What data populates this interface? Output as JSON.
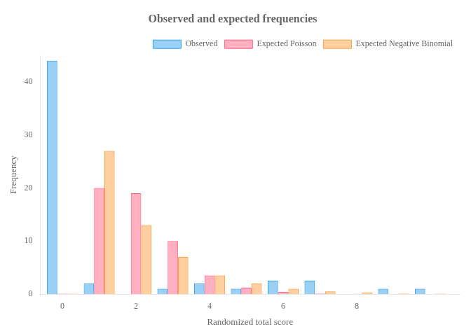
{
  "chart_data": {
    "type": "bar",
    "title": "Observed and expected frequencies",
    "xlabel": "Randomized total score",
    "ylabel": "Frequency",
    "x": [
      0,
      1,
      2,
      3,
      4,
      5,
      6,
      7,
      8,
      9,
      10
    ],
    "series": [
      {
        "name": "Observed",
        "values": [
          44,
          2,
          0,
          1,
          2,
          1,
          2.5,
          2.5,
          0,
          1,
          1
        ]
      },
      {
        "name": "Expected Poisson",
        "values": [
          0.05,
          20,
          19,
          10,
          3.5,
          1.2,
          0.4,
          0.1,
          0.03,
          0.01,
          0.0
        ]
      },
      {
        "name": "Expected Negative Binomial",
        "values": [
          0.05,
          27,
          13,
          7,
          3.5,
          2,
          1,
          0.5,
          0.3,
          0.1,
          0.05
        ]
      }
    ],
    "xlim": [
      -0.6,
      10.8
    ],
    "xticks": [
      0,
      2,
      4,
      6,
      8
    ],
    "ylim": [
      0,
      45
    ],
    "yticks": [
      0,
      10,
      20,
      30,
      40
    ],
    "grid": false,
    "legend": "upper right"
  }
}
